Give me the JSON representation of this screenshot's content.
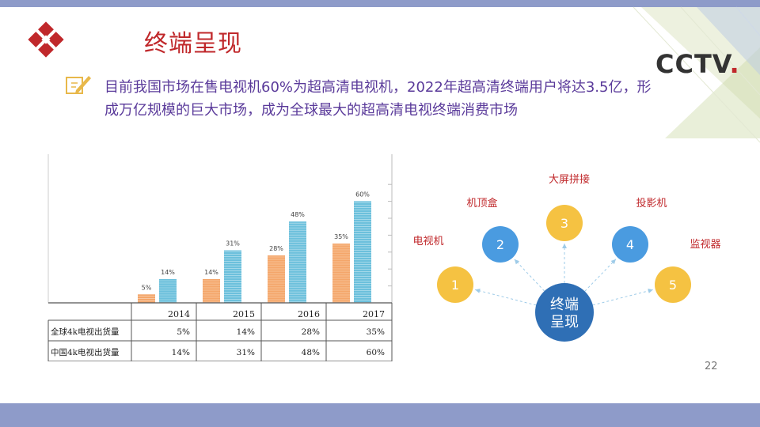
{
  "title": "终端呈现",
  "logo_text": "CCTV",
  "logo_dot": ".",
  "description": "目前我国市场在售电视机60%为超高清电视机，2022年超高清终端用户将达3.5亿，形成万亿规模的巨大市场，成为全球最大的超高清电视终端消费市场",
  "page_number": "22",
  "colors": {
    "accent": "#c0282b",
    "text": "#5a3a9a",
    "orange": "#f4a66a",
    "blue": "#6cc0dc",
    "yellow": "#f5c242",
    "node_blue": "#4a9be0",
    "center": "#2f6fb5",
    "bar": "#8e9bc9"
  },
  "icons": [
    "diamond-logo-icon",
    "pencil-note-icon"
  ],
  "chart_data": {
    "type": "bar",
    "categories": [
      "2014",
      "2015",
      "2016",
      "2017"
    ],
    "series": [
      {
        "name": "全球4k电视出货量",
        "values": [
          5,
          14,
          28,
          35
        ]
      },
      {
        "name": "中国4k电视出货量",
        "values": [
          14,
          31,
          48,
          60
        ]
      }
    ],
    "value_labels": [
      [
        "5%",
        "14%",
        "28%",
        "35%"
      ],
      [
        "14%",
        "31%",
        "48%",
        "60%"
      ]
    ],
    "ylim": [
      0,
      70
    ]
  },
  "diagram": {
    "center": [
      "终端",
      "呈现"
    ],
    "nodes": [
      {
        "num": "1",
        "label": "电视机"
      },
      {
        "num": "2",
        "label": "机顶盒"
      },
      {
        "num": "3",
        "label": "大屏拼接"
      },
      {
        "num": "4",
        "label": "投影机"
      },
      {
        "num": "5",
        "label": "监视器"
      }
    ]
  }
}
